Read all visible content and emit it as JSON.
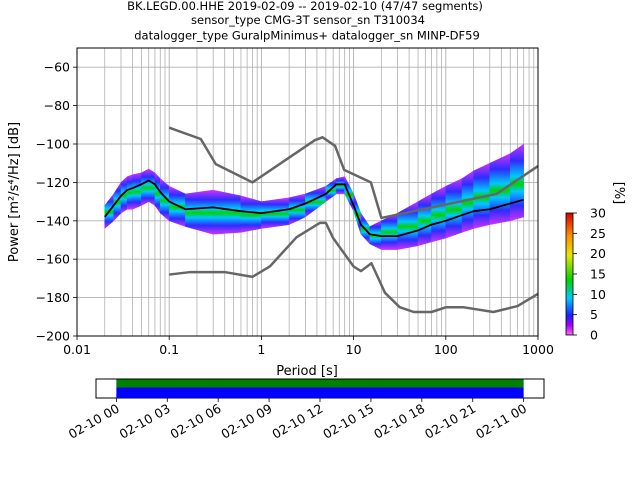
{
  "title": {
    "line1": "BK.LEGD.00.HHE   2019-02-09 -- 2019-02-10  (47/47 segments)",
    "line2": "sensor_type CMG-3T sensor_sn T310034",
    "line3": "datalogger_type GuralpMinimus+ datalogger_sn MINP-DF59"
  },
  "chart_data": [
    {
      "type": "heatmap",
      "xlabel": "Period [s]",
      "ylabel": "Power [m²/s⁴/Hz] [dB]",
      "x_scale": "log",
      "xlim": [
        0.01,
        1000
      ],
      "ylim": [
        -200,
        -50
      ],
      "x_ticks": [
        0.01,
        0.1,
        1,
        10,
        100,
        1000
      ],
      "x_tick_labels": [
        "0.01",
        "0.1",
        "1",
        "10",
        "100",
        "1000"
      ],
      "y_ticks": [
        -200,
        -180,
        -160,
        -140,
        -120,
        -100,
        -80,
        -60
      ],
      "y_tick_labels": [
        "−200",
        "−180",
        "−160",
        "−140",
        "−120",
        "−100",
        "−80",
        "−60"
      ],
      "grid": true,
      "colorbar": {
        "label": "[%]",
        "range": [
          0,
          30
        ],
        "ticks": [
          0,
          5,
          10,
          15,
          20,
          25,
          30
        ],
        "tick_labels": [
          "0",
          "5",
          "10",
          "15",
          "20",
          "25",
          "30"
        ]
      },
      "series": [
        {
          "role": "new-high-noise-model",
          "color": "#666666",
          "x": [
            0.1,
            0.22,
            0.32,
            0.8,
            3.8,
            4.6,
            6.3,
            7.9,
            15.4,
            20,
            354.8,
            1000
          ],
          "y": [
            -91.5,
            -97.4,
            -110.5,
            -120,
            -98,
            -96.5,
            -101,
            -113.5,
            -120,
            -138.5,
            -126,
            -111.5
          ]
        },
        {
          "role": "new-low-noise-model",
          "color": "#666666",
          "x": [
            0.1,
            0.17,
            0.4,
            0.8,
            1.24,
            2.4,
            4.3,
            5,
            6,
            10,
            12,
            15.6,
            21.9,
            31.6,
            45,
            70,
            101,
            154,
            328,
            600,
            1000
          ],
          "y": [
            -168,
            -166.7,
            -166.7,
            -169.2,
            -163.7,
            -148.6,
            -141.1,
            -141.1,
            -149,
            -163.8,
            -166.2,
            -162.1,
            -177.5,
            -185,
            -187.5,
            -187.5,
            -185,
            -185,
            -187.5,
            -184.4,
            -178
          ]
        },
        {
          "role": "mode",
          "color": "#000000",
          "x": [
            0.02,
            0.025,
            0.03,
            0.035,
            0.04,
            0.05,
            0.06,
            0.07,
            0.08,
            0.1,
            0.15,
            0.3,
            0.6,
            1,
            2,
            3,
            5,
            6.5,
            8,
            10,
            12,
            15,
            20,
            30,
            50,
            70,
            100,
            150,
            200,
            300,
            500,
            700
          ],
          "y": [
            -138,
            -132,
            -127,
            -124,
            -123,
            -121,
            -119,
            -121,
            -125,
            -130,
            -134,
            -133,
            -135,
            -136,
            -134,
            -131,
            -126,
            -121,
            -121,
            -132,
            -142,
            -147,
            -148,
            -148,
            -145,
            -142,
            -140,
            -137,
            -135,
            -134,
            -131,
            -129
          ]
        }
      ],
      "psd_band": {
        "color_scale": "percent",
        "periods": [
          0.02,
          0.025,
          0.03,
          0.035,
          0.04,
          0.05,
          0.06,
          0.07,
          0.08,
          0.1,
          0.15,
          0.3,
          0.6,
          1,
          2,
          3,
          5,
          6.5,
          8,
          10,
          12,
          15,
          20,
          30,
          50,
          70,
          100,
          150,
          200,
          300,
          500,
          700
        ],
        "low_db": [
          -144,
          -140,
          -136,
          -134,
          -134,
          -132,
          -130,
          -132,
          -136,
          -140,
          -143,
          -147,
          -146,
          -144,
          -142,
          -138,
          -130,
          -126,
          -126,
          -135,
          -147,
          -152,
          -155,
          -155,
          -153,
          -151,
          -149,
          -146,
          -144,
          -142,
          -140,
          -138
        ],
        "high_db": [
          -132,
          -126,
          -120,
          -117,
          -116,
          -115,
          -113,
          -115,
          -118,
          -122,
          -126,
          -124,
          -127,
          -130,
          -128,
          -126,
          -122,
          -118,
          -117,
          -126,
          -136,
          -143,
          -140,
          -136,
          -130,
          -126,
          -122,
          -118,
          -114,
          -110,
          -105,
          -100
        ]
      }
    },
    {
      "type": "bar",
      "role": "data-coverage",
      "x_tick_labels": [
        "02-10 00",
        "02-10 03",
        "02-10 06",
        "02-10 09",
        "02-10 12",
        "02-10 15",
        "02-10 18",
        "02-10 21",
        "02-11 00"
      ],
      "x_ticks_hours": [
        0,
        3,
        6,
        9,
        12,
        15,
        18,
        21,
        24
      ],
      "xlim_hours": [
        -1.2,
        25.2
      ],
      "series": [
        {
          "name": "coverage",
          "color": "#008000",
          "start_hours": 0,
          "end_hours": 24
        },
        {
          "name": "used",
          "color": "#0000ff",
          "start_hours": 0,
          "end_hours": 24
        }
      ]
    }
  ]
}
